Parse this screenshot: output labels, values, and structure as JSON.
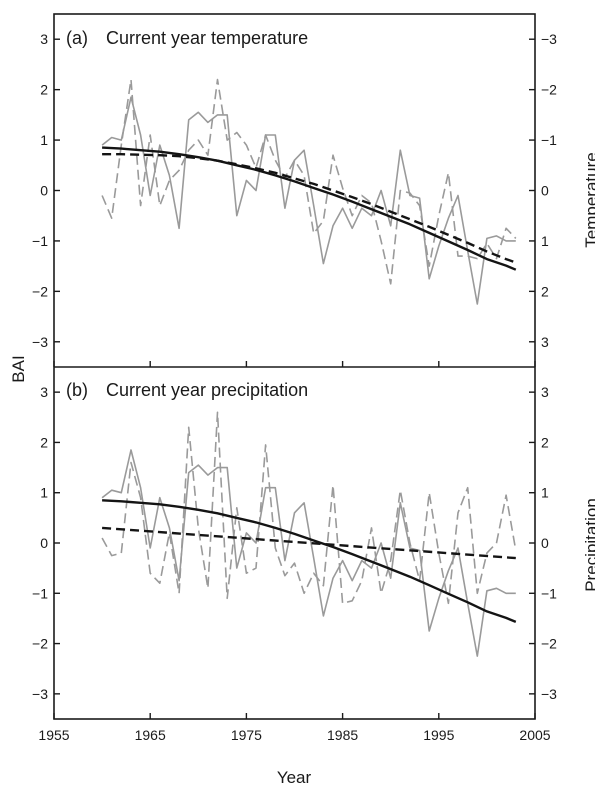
{
  "chart_data": [
    {
      "panel_label": "(a)",
      "title": "Current year temperature",
      "type": "line",
      "ylabel_left": "BAI",
      "ylabel_right": "Temperature",
      "xlim": [
        1955,
        2005
      ],
      "ylim": [
        -3.5,
        3.5
      ],
      "right_axis_inverted": true,
      "yticks_left": [
        "3",
        "2",
        "1",
        "0",
        "−1",
        "−2",
        "−3"
      ],
      "yticks_right": [
        "−3",
        "−2",
        "−1",
        "0",
        "1",
        "2",
        "3"
      ],
      "series": [
        {
          "style": "solid-gray",
          "x": [
            1960,
            1961,
            1962,
            1963,
            1964,
            1965,
            1966,
            1967,
            1968,
            1969,
            1970,
            1971,
            1972,
            1973,
            1974,
            1975,
            1976,
            1977,
            1978,
            1979,
            1980,
            1981,
            1982,
            1983,
            1984,
            1985,
            1986,
            1987,
            1988,
            1989,
            1990,
            1991,
            1992,
            1993,
            1994,
            1995,
            1996,
            1997,
            1998,
            1999,
            2000,
            2001,
            2002,
            2003
          ],
          "values": [
            0.9,
            1.05,
            1.0,
            1.85,
            1.1,
            -0.1,
            0.9,
            0.3,
            -0.75,
            1.4,
            1.55,
            1.35,
            1.5,
            1.5,
            -0.5,
            0.2,
            0.0,
            1.1,
            1.1,
            -0.35,
            0.6,
            0.8,
            -0.3,
            -1.45,
            -0.7,
            -0.35,
            -0.75,
            -0.35,
            -0.5,
            0.0,
            -0.7,
            0.8,
            -0.1,
            -0.15,
            -1.75,
            -1.1,
            -0.55,
            -0.1,
            -1.2,
            -2.25,
            -0.95,
            -0.9,
            -1.0,
            -1.0
          ]
        },
        {
          "style": "dashed-gray",
          "x": [
            1960,
            1961,
            1962,
            1963,
            1964,
            1965,
            1966,
            1967,
            1968,
            1969,
            1970,
            1971,
            1972,
            1973,
            1974,
            1975,
            1976,
            1977,
            1978,
            1979,
            1980,
            1981,
            1982,
            1983,
            1984,
            1985,
            1986,
            1987,
            1988,
            1989,
            1990,
            1991,
            1992,
            1993,
            1994,
            1995,
            1996,
            1997,
            1998,
            1999,
            2000,
            2001,
            2002,
            2003
          ],
          "values": [
            -0.1,
            -0.55,
            0.9,
            2.2,
            -0.3,
            1.1,
            -0.3,
            0.2,
            0.4,
            0.8,
            1.0,
            0.7,
            2.2,
            1.0,
            1.15,
            0.9,
            0.45,
            1.1,
            0.6,
            0.25,
            0.6,
            0.3,
            -0.85,
            -0.6,
            0.7,
            0.05,
            -0.5,
            -0.1,
            -0.25,
            -1.0,
            -1.85,
            0.0,
            -0.05,
            -0.3,
            -1.5,
            -0.5,
            0.35,
            -1.3,
            -1.3,
            -1.35,
            -1.05,
            -1.35,
            -0.75,
            -0.95
          ]
        },
        {
          "style": "solid-black-trend",
          "x": [
            1960,
            1962,
            1964,
            1966,
            1968,
            1970,
            1972,
            1974,
            1976,
            1978,
            1980,
            1982,
            1984,
            1986,
            1988,
            1990,
            1992,
            1994,
            1996,
            1998,
            2000,
            2002,
            2003
          ],
          "values": [
            0.85,
            0.83,
            0.8,
            0.77,
            0.72,
            0.66,
            0.59,
            0.5,
            0.41,
            0.3,
            0.18,
            0.05,
            -0.08,
            -0.22,
            -0.37,
            -0.52,
            -0.67,
            -0.84,
            -1.01,
            -1.18,
            -1.36,
            -1.49,
            -1.57
          ]
        },
        {
          "style": "dashed-black-trend",
          "x": [
            1960,
            1962,
            1964,
            1966,
            1968,
            1970,
            1972,
            1974,
            1976,
            1978,
            1980,
            1982,
            1984,
            1986,
            1988,
            1990,
            1992,
            1994,
            1996,
            1998,
            2000,
            2002,
            2003
          ],
          "values": [
            0.72,
            0.72,
            0.71,
            0.7,
            0.68,
            0.64,
            0.59,
            0.52,
            0.44,
            0.35,
            0.24,
            0.13,
            0.0,
            -0.13,
            -0.27,
            -0.42,
            -0.57,
            -0.72,
            -0.88,
            -1.04,
            -1.21,
            -1.36,
            -1.43
          ]
        }
      ]
    },
    {
      "panel_label": "(b)",
      "title": "Current year precipitation",
      "type": "line",
      "xlabel": "Year",
      "ylabel_left": "BAI",
      "ylabel_right": "Precipitation",
      "xlim": [
        1955,
        2005
      ],
      "ylim": [
        -3.5,
        3.5
      ],
      "xticks": [
        "1955",
        "1965",
        "1975",
        "1985",
        "1995",
        "2005"
      ],
      "yticks_left": [
        "3",
        "2",
        "1",
        "0",
        "−1",
        "−2",
        "−3"
      ],
      "yticks_right": [
        "3",
        "2",
        "1",
        "0",
        "−1",
        "−2",
        "−3"
      ],
      "series": [
        {
          "style": "solid-gray",
          "x": [
            1960,
            1961,
            1962,
            1963,
            1964,
            1965,
            1966,
            1967,
            1968,
            1969,
            1970,
            1971,
            1972,
            1973,
            1974,
            1975,
            1976,
            1977,
            1978,
            1979,
            1980,
            1981,
            1982,
            1983,
            1984,
            1985,
            1986,
            1987,
            1988,
            1989,
            1990,
            1991,
            1992,
            1993,
            1994,
            1995,
            1996,
            1997,
            1998,
            1999,
            2000,
            2001,
            2002,
            2003
          ],
          "values": [
            0.9,
            1.05,
            1.0,
            1.85,
            1.1,
            -0.1,
            0.9,
            0.3,
            -0.75,
            1.4,
            1.55,
            1.35,
            1.5,
            1.5,
            -0.5,
            0.2,
            0.0,
            1.1,
            1.1,
            -0.35,
            0.6,
            0.8,
            -0.3,
            -1.45,
            -0.7,
            -0.35,
            -0.75,
            -0.35,
            -0.5,
            0.0,
            -0.7,
            0.8,
            -0.1,
            -0.15,
            -1.75,
            -1.1,
            -0.55,
            -0.1,
            -1.2,
            -2.25,
            -0.95,
            -0.9,
            -1.0,
            -1.0
          ]
        },
        {
          "style": "dashed-gray",
          "x": [
            1960,
            1961,
            1962,
            1963,
            1964,
            1965,
            1966,
            1967,
            1968,
            1969,
            1970,
            1971,
            1972,
            1973,
            1974,
            1975,
            1976,
            1977,
            1978,
            1979,
            1980,
            1981,
            1982,
            1983,
            1984,
            1985,
            1986,
            1987,
            1988,
            1989,
            1990,
            1991,
            1992,
            1993,
            1994,
            1995,
            1996,
            1997,
            1998,
            1999,
            2000,
            2001,
            2002,
            2003
          ],
          "values": [
            0.1,
            -0.25,
            -0.2,
            1.6,
            0.9,
            -0.6,
            -0.8,
            0.2,
            -1.0,
            2.3,
            0.3,
            -0.9,
            2.6,
            -1.1,
            0.7,
            -0.6,
            -0.5,
            1.95,
            -0.1,
            -0.65,
            -0.4,
            -1.0,
            -0.6,
            -0.85,
            1.15,
            -1.2,
            -1.15,
            -0.75,
            0.3,
            -1.0,
            -0.35,
            1.05,
            0.0,
            -0.75,
            1.0,
            -0.2,
            -1.2,
            0.6,
            1.1,
            -1.0,
            -0.2,
            0.0,
            0.95,
            -0.15
          ]
        },
        {
          "style": "solid-black-trend",
          "x": [
            1960,
            1962,
            1964,
            1966,
            1968,
            1970,
            1972,
            1974,
            1976,
            1978,
            1980,
            1982,
            1984,
            1986,
            1988,
            1990,
            1992,
            1994,
            1996,
            1998,
            2000,
            2002,
            2003
          ],
          "values": [
            0.85,
            0.83,
            0.8,
            0.77,
            0.72,
            0.66,
            0.59,
            0.5,
            0.41,
            0.3,
            0.18,
            0.05,
            -0.08,
            -0.22,
            -0.37,
            -0.52,
            -0.67,
            -0.84,
            -1.01,
            -1.18,
            -1.36,
            -1.49,
            -1.57
          ]
        },
        {
          "style": "dashed-black-trend",
          "x": [
            1960,
            2003
          ],
          "values": [
            0.3,
            -0.3
          ]
        }
      ]
    }
  ]
}
